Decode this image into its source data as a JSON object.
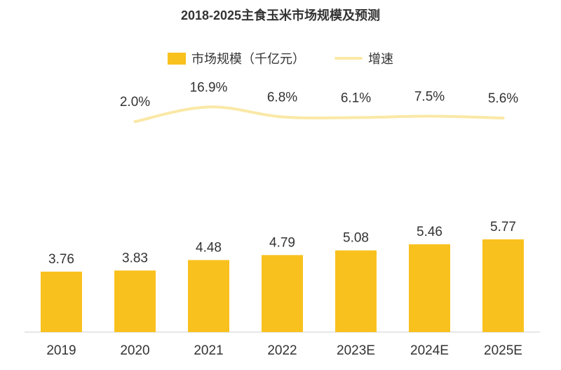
{
  "chart_data": {
    "type": "bar",
    "title": "2018-2025主食玉米市场规模及预测",
    "categories": [
      "2019",
      "2020",
      "2021",
      "2022",
      "2023E",
      "2024E",
      "2025E"
    ],
    "series": [
      {
        "name": "市场规模（千亿元）",
        "type": "bar",
        "values": [
          3.76,
          3.83,
          4.48,
          4.79,
          5.08,
          5.46,
          5.77
        ],
        "labels": [
          "3.76",
          "3.83",
          "4.48",
          "4.79",
          "5.08",
          "5.46",
          "5.77"
        ],
        "color": "#f9c11e"
      },
      {
        "name": "增速",
        "type": "line",
        "values": [
          null,
          2.0,
          16.9,
          6.8,
          6.1,
          7.5,
          5.6
        ],
        "labels": [
          "",
          "2.0%",
          "16.9%",
          "6.8%",
          "6.1%",
          "7.5%",
          "5.6%"
        ],
        "color": "#fae8a6"
      }
    ],
    "xlabel": "",
    "ylabel": "",
    "grid": false,
    "legend_position": "top-center"
  }
}
